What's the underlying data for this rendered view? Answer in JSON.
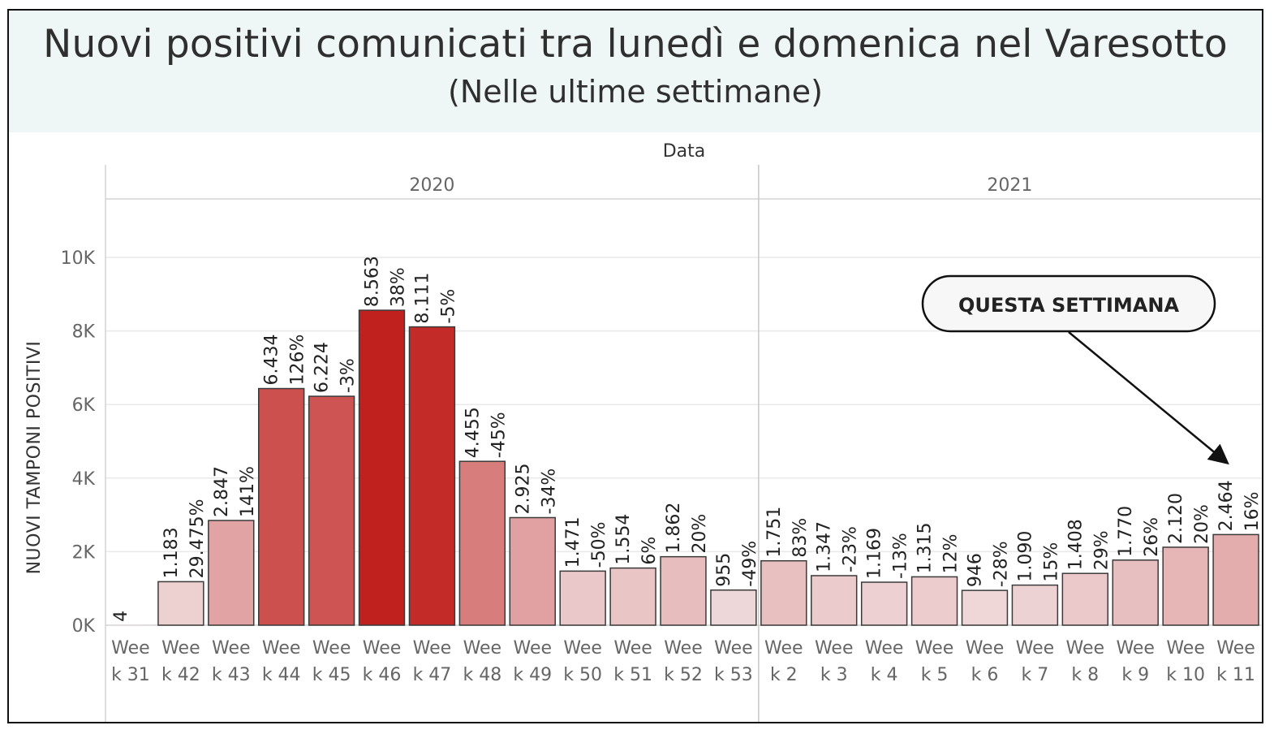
{
  "header": {
    "title": "Nuovi positivi comunicati tra lunedì e domenica nel Varesotto",
    "subtitle": "(Nelle ultime settimane)"
  },
  "colors": {
    "title_band": "#eef6f6",
    "bar_darkest": "#c0211f",
    "bar_lightest": "#efd9da",
    "bar_outline": "#3a3a3a",
    "text": "#2f2f2f",
    "axis_text": "#666666"
  },
  "annotation": {
    "label": "QUESTA SETTIMANA",
    "target_category": "Week 11"
  },
  "chart_data": {
    "type": "bar",
    "column_header": "Data",
    "ylabel": "NUOVI TAMPONI POSITIVI",
    "ylim": [
      0,
      11000
    ],
    "yticks": [
      0,
      2000,
      4000,
      6000,
      8000,
      10000
    ],
    "ytick_labels": [
      "0K",
      "2K",
      "4K",
      "6K",
      "8K",
      "10K"
    ],
    "grid": true,
    "groups": [
      {
        "name": "2020",
        "bars": [
          {
            "line1": "Wee",
            "line2": "k 31",
            "value": 4,
            "value_label": "4",
            "pct_label": ""
          },
          {
            "line1": "Wee",
            "line2": "k 42",
            "value": 1183,
            "value_label": "1.183",
            "pct_label": "29.475%"
          },
          {
            "line1": "Wee",
            "line2": "k 43",
            "value": 2847,
            "value_label": "2.847",
            "pct_label": "141%"
          },
          {
            "line1": "Wee",
            "line2": "k 44",
            "value": 6434,
            "value_label": "6.434",
            "pct_label": "126%"
          },
          {
            "line1": "Wee",
            "line2": "k 45",
            "value": 6224,
            "value_label": "6.224",
            "pct_label": "-3%"
          },
          {
            "line1": "Wee",
            "line2": "k 46",
            "value": 8563,
            "value_label": "8.563",
            "pct_label": "38%"
          },
          {
            "line1": "Wee",
            "line2": "k 47",
            "value": 8111,
            "value_label": "8.111",
            "pct_label": "-5%"
          },
          {
            "line1": "Wee",
            "line2": "k 48",
            "value": 4455,
            "value_label": "4.455",
            "pct_label": "-45%"
          },
          {
            "line1": "Wee",
            "line2": "k 49",
            "value": 2925,
            "value_label": "2.925",
            "pct_label": "-34%"
          },
          {
            "line1": "Wee",
            "line2": "k 50",
            "value": 1471,
            "value_label": "1.471",
            "pct_label": "-50%"
          },
          {
            "line1": "Wee",
            "line2": "k 51",
            "value": 1554,
            "value_label": "1.554",
            "pct_label": "6%"
          },
          {
            "line1": "Wee",
            "line2": "k 52",
            "value": 1862,
            "value_label": "1.862",
            "pct_label": "20%"
          },
          {
            "line1": "Wee",
            "line2": "k 53",
            "value": 955,
            "value_label": "955",
            "pct_label": "-49%"
          }
        ]
      },
      {
        "name": "2021",
        "bars": [
          {
            "line1": "Wee",
            "line2": "k 2",
            "value": 1751,
            "value_label": "1.751",
            "pct_label": "83%"
          },
          {
            "line1": "Wee",
            "line2": "k 3",
            "value": 1347,
            "value_label": "1.347",
            "pct_label": "-23%"
          },
          {
            "line1": "Wee",
            "line2": "k 4",
            "value": 1169,
            "value_label": "1.169",
            "pct_label": "-13%"
          },
          {
            "line1": "Wee",
            "line2": "k 5",
            "value": 1315,
            "value_label": "1.315",
            "pct_label": "12%"
          },
          {
            "line1": "Wee",
            "line2": "k 6",
            "value": 946,
            "value_label": "946",
            "pct_label": "-28%"
          },
          {
            "line1": "Wee",
            "line2": "k 7",
            "value": 1090,
            "value_label": "1.090",
            "pct_label": "15%"
          },
          {
            "line1": "Wee",
            "line2": "k 8",
            "value": 1408,
            "value_label": "1.408",
            "pct_label": "29%"
          },
          {
            "line1": "Wee",
            "line2": "k 9",
            "value": 1770,
            "value_label": "1.770",
            "pct_label": "26%"
          },
          {
            "line1": "Wee",
            "line2": "k 10",
            "value": 2120,
            "value_label": "2.120",
            "pct_label": "20%"
          },
          {
            "line1": "Wee",
            "line2": "k 11",
            "value": 2464,
            "value_label": "2.464",
            "pct_label": "16%"
          }
        ]
      }
    ]
  }
}
